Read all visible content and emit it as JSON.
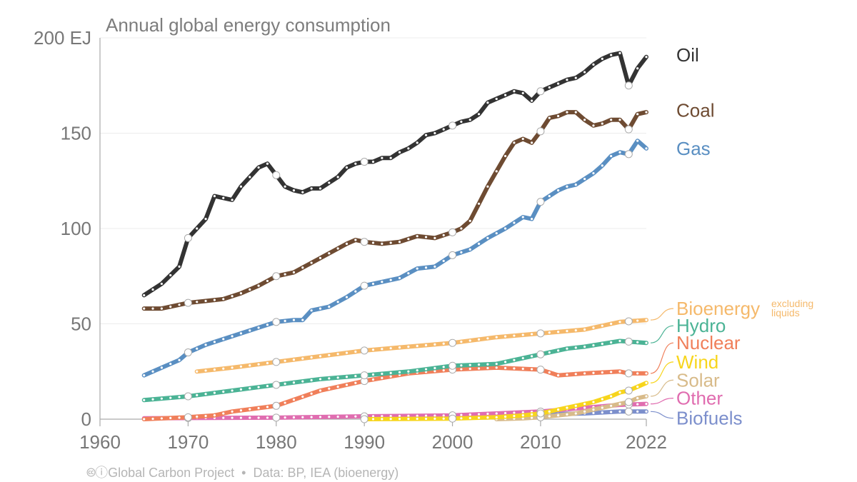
{
  "chart_data": {
    "type": "line",
    "title": "Annual global energy consumption",
    "y_unit_label": "200 EJ",
    "ylim": [
      0,
      200
    ],
    "xlim": [
      1960,
      2022
    ],
    "y_ticks": [
      {
        "value": 0,
        "label": "0"
      },
      {
        "value": 50,
        "label": "50"
      },
      {
        "value": 100,
        "label": "100"
      },
      {
        "value": 150,
        "label": "150"
      },
      {
        "value": 200,
        "label": "200 EJ"
      }
    ],
    "x_ticks": [
      {
        "value": 1960,
        "label": "1960"
      },
      {
        "value": 1970,
        "label": "1970"
      },
      {
        "value": 1980,
        "label": "1980"
      },
      {
        "value": 1990,
        "label": "1990"
      },
      {
        "value": 2000,
        "label": "2000"
      },
      {
        "value": 2010,
        "label": "2010"
      },
      {
        "value": 2022,
        "label": "2022"
      }
    ],
    "series": [
      {
        "name": "Oil",
        "label": "Oil",
        "color": "#333333",
        "label_value": 191,
        "points": [
          [
            1965,
            65
          ],
          [
            1967,
            71
          ],
          [
            1969,
            80
          ],
          [
            1970,
            95
          ],
          [
            1972,
            105
          ],
          [
            1973,
            117
          ],
          [
            1975,
            115
          ],
          [
            1976,
            122
          ],
          [
            1977,
            127
          ],
          [
            1978,
            132
          ],
          [
            1979,
            134
          ],
          [
            1980,
            128
          ],
          [
            1981,
            122
          ],
          [
            1982,
            120
          ],
          [
            1983,
            119
          ],
          [
            1984,
            121
          ],
          [
            1985,
            121
          ],
          [
            1986,
            124
          ],
          [
            1987,
            127
          ],
          [
            1988,
            132
          ],
          [
            1989,
            134
          ],
          [
            1990,
            135
          ],
          [
            1991,
            135
          ],
          [
            1992,
            137
          ],
          [
            1993,
            137
          ],
          [
            1994,
            140
          ],
          [
            1995,
            142
          ],
          [
            1996,
            145
          ],
          [
            1997,
            149
          ],
          [
            1998,
            150
          ],
          [
            1999,
            152
          ],
          [
            2000,
            154
          ],
          [
            2001,
            156
          ],
          [
            2002,
            157
          ],
          [
            2003,
            160
          ],
          [
            2004,
            166
          ],
          [
            2005,
            168
          ],
          [
            2006,
            170
          ],
          [
            2007,
            172
          ],
          [
            2008,
            171
          ],
          [
            2009,
            167
          ],
          [
            2010,
            172
          ],
          [
            2011,
            174
          ],
          [
            2012,
            176
          ],
          [
            2013,
            178
          ],
          [
            2014,
            179
          ],
          [
            2015,
            182
          ],
          [
            2016,
            186
          ],
          [
            2017,
            189
          ],
          [
            2018,
            191
          ],
          [
            2019,
            192
          ],
          [
            2020,
            175
          ],
          [
            2021,
            184
          ],
          [
            2022,
            190
          ]
        ]
      },
      {
        "name": "Coal",
        "label": "Coal",
        "color": "#6e4b32",
        "label_value": 162,
        "points": [
          [
            1965,
            58
          ],
          [
            1967,
            58
          ],
          [
            1969,
            60
          ],
          [
            1970,
            61
          ],
          [
            1972,
            62
          ],
          [
            1974,
            63
          ],
          [
            1976,
            66
          ],
          [
            1978,
            70
          ],
          [
            1980,
            75
          ],
          [
            1982,
            77
          ],
          [
            1984,
            82
          ],
          [
            1986,
            87
          ],
          [
            1988,
            92
          ],
          [
            1989,
            94
          ],
          [
            1990,
            93
          ],
          [
            1992,
            92
          ],
          [
            1994,
            93
          ],
          [
            1996,
            96
          ],
          [
            1998,
            95
          ],
          [
            2000,
            98
          ],
          [
            2001,
            100
          ],
          [
            2002,
            104
          ],
          [
            2003,
            113
          ],
          [
            2004,
            122
          ],
          [
            2005,
            130
          ],
          [
            2006,
            138
          ],
          [
            2007,
            145
          ],
          [
            2008,
            147
          ],
          [
            2009,
            145
          ],
          [
            2010,
            151
          ],
          [
            2011,
            158
          ],
          [
            2012,
            159
          ],
          [
            2013,
            161
          ],
          [
            2014,
            161
          ],
          [
            2015,
            157
          ],
          [
            2016,
            154
          ],
          [
            2017,
            155
          ],
          [
            2018,
            157
          ],
          [
            2019,
            157
          ],
          [
            2020,
            152
          ],
          [
            2021,
            160
          ],
          [
            2022,
            161
          ]
        ]
      },
      {
        "name": "Gas",
        "label": "Gas",
        "color": "#5a8fc2",
        "label_value": 142,
        "points": [
          [
            1965,
            23
          ],
          [
            1967,
            27
          ],
          [
            1969,
            31
          ],
          [
            1970,
            35
          ],
          [
            1972,
            39
          ],
          [
            1974,
            42
          ],
          [
            1976,
            45
          ],
          [
            1978,
            48
          ],
          [
            1980,
            51
          ],
          [
            1982,
            52
          ],
          [
            1983,
            52
          ],
          [
            1984,
            57
          ],
          [
            1986,
            59
          ],
          [
            1988,
            64
          ],
          [
            1990,
            70
          ],
          [
            1992,
            72
          ],
          [
            1994,
            74
          ],
          [
            1996,
            79
          ],
          [
            1998,
            80
          ],
          [
            2000,
            86
          ],
          [
            2002,
            89
          ],
          [
            2004,
            95
          ],
          [
            2006,
            100
          ],
          [
            2008,
            106
          ],
          [
            2009,
            105
          ],
          [
            2010,
            114
          ],
          [
            2011,
            117
          ],
          [
            2012,
            120
          ],
          [
            2013,
            122
          ],
          [
            2014,
            123
          ],
          [
            2016,
            129
          ],
          [
            2017,
            133
          ],
          [
            2018,
            138
          ],
          [
            2019,
            140
          ],
          [
            2020,
            139
          ],
          [
            2021,
            146
          ],
          [
            2022,
            142
          ]
        ]
      },
      {
        "name": "Bioenergy",
        "label": "Bioenergy",
        "note": "excluding liquids",
        "color": "#f5b96b",
        "label_value": 58,
        "points": [
          [
            1971,
            25
          ],
          [
            1975,
            27
          ],
          [
            1980,
            30
          ],
          [
            1985,
            33
          ],
          [
            1990,
            36
          ],
          [
            1995,
            38
          ],
          [
            2000,
            40
          ],
          [
            2005,
            43
          ],
          [
            2010,
            45
          ],
          [
            2015,
            47
          ],
          [
            2019,
            51
          ],
          [
            2022,
            52
          ]
        ]
      },
      {
        "name": "Hydro",
        "label": "Hydro",
        "color": "#4bb395",
        "label_value": 49,
        "points": [
          [
            1965,
            10
          ],
          [
            1970,
            12
          ],
          [
            1975,
            15
          ],
          [
            1980,
            18
          ],
          [
            1985,
            21
          ],
          [
            1990,
            23
          ],
          [
            1995,
            25
          ],
          [
            2000,
            28
          ],
          [
            2005,
            29
          ],
          [
            2010,
            34
          ],
          [
            2013,
            37
          ],
          [
            2015,
            38
          ],
          [
            2019,
            41
          ],
          [
            2022,
            40
          ]
        ]
      },
      {
        "name": "Nuclear",
        "label": "Nuclear",
        "color": "#f07f5a",
        "label_value": 40,
        "points": [
          [
            1965,
            0
          ],
          [
            1970,
            1
          ],
          [
            1973,
            2
          ],
          [
            1975,
            4
          ],
          [
            1980,
            7
          ],
          [
            1985,
            15
          ],
          [
            1990,
            20
          ],
          [
            1995,
            24
          ],
          [
            2000,
            26
          ],
          [
            2005,
            27
          ],
          [
            2010,
            26
          ],
          [
            2012,
            23
          ],
          [
            2015,
            24
          ],
          [
            2019,
            25
          ],
          [
            2020,
            24
          ],
          [
            2022,
            24
          ]
        ]
      },
      {
        "name": "Wind",
        "label": "Wind",
        "color": "#f7d51c",
        "label_value": 30,
        "points": [
          [
            1990,
            0
          ],
          [
            2000,
            0.3
          ],
          [
            2005,
            1
          ],
          [
            2008,
            2
          ],
          [
            2010,
            3
          ],
          [
            2012,
            5
          ],
          [
            2014,
            7
          ],
          [
            2016,
            9
          ],
          [
            2018,
            12
          ],
          [
            2019,
            14
          ],
          [
            2020,
            15
          ],
          [
            2021,
            17
          ],
          [
            2022,
            19
          ]
        ]
      },
      {
        "name": "Solar",
        "label": "Solar",
        "color": "#d8bb8a",
        "label_value": 20.5,
        "points": [
          [
            2005,
            0
          ],
          [
            2008,
            0.4
          ],
          [
            2010,
            1
          ],
          [
            2012,
            2
          ],
          [
            2014,
            3
          ],
          [
            2016,
            5
          ],
          [
            2018,
            7
          ],
          [
            2019,
            8
          ],
          [
            2020,
            9
          ],
          [
            2021,
            11
          ],
          [
            2022,
            12
          ]
        ]
      },
      {
        "name": "Other",
        "label": "Other",
        "color": "#e06db0",
        "label_value": 11,
        "points": [
          [
            1965,
            0.5
          ],
          [
            1970,
            0.6
          ],
          [
            1980,
            0.8
          ],
          [
            1990,
            1.5
          ],
          [
            2000,
            2
          ],
          [
            2005,
            3
          ],
          [
            2010,
            4
          ],
          [
            2015,
            6
          ],
          [
            2019,
            7.5
          ],
          [
            2022,
            8
          ]
        ]
      },
      {
        "name": "Biofuels",
        "label": "Biofuels",
        "color": "#7c8fcc",
        "label_value": 0.5,
        "points": [
          [
            1990,
            0.3
          ],
          [
            2000,
            0.5
          ],
          [
            2005,
            1
          ],
          [
            2008,
            2
          ],
          [
            2010,
            2.5
          ],
          [
            2015,
            3
          ],
          [
            2019,
            4
          ],
          [
            2022,
            4
          ]
        ]
      }
    ]
  },
  "footer": {
    "source": "Global Carbon Project",
    "data": "Data: BP, IEA (bioenergy)"
  }
}
